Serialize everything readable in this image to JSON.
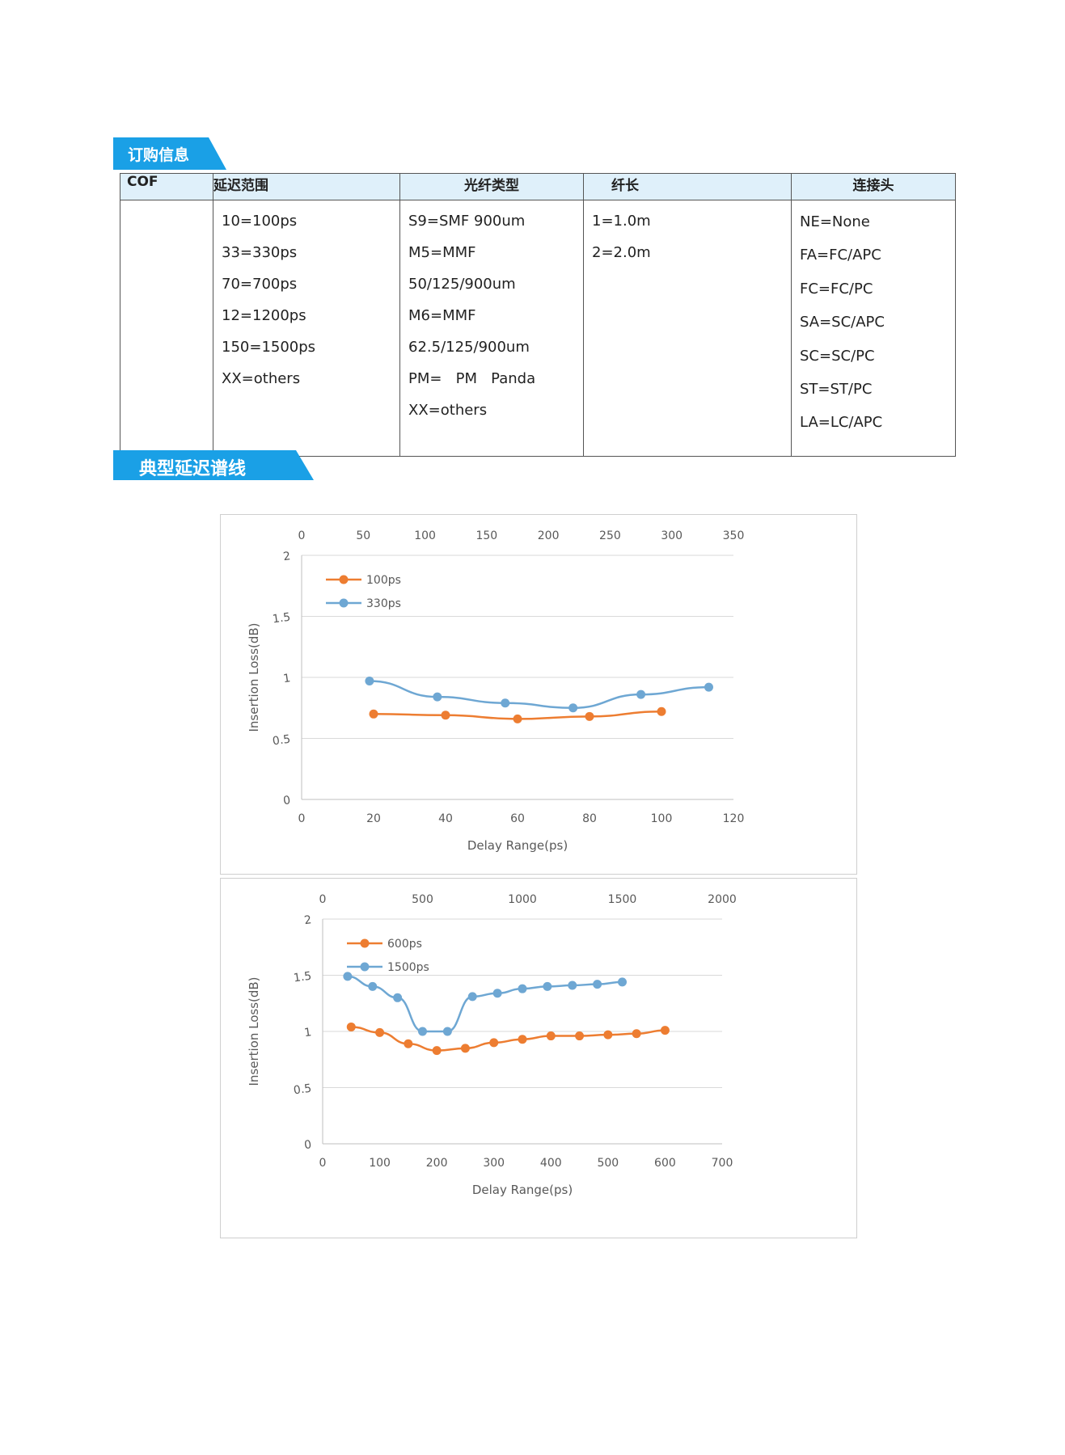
{
  "sections": {
    "order_title": "订购信息",
    "spectrum_title": "典型延迟谱线"
  },
  "colors": {
    "banner": "#1aa0e6",
    "header_bg": "#dff0fa",
    "orange": "#ed7d31",
    "blue": "#6ea7d3"
  },
  "order_table": {
    "headers": [
      "COF",
      "延迟范围",
      "光纤类型",
      "纤长",
      "连接头"
    ],
    "columns": [
      [],
      [
        "10=100ps",
        "33=330ps",
        "70=700ps",
        "12=1200ps",
        "150=1500ps",
        "XX=others"
      ],
      [
        "S9=SMF 900um",
        "M5=MMF",
        "50/125/900um",
        "M6=MMF",
        "62.5/125/900um",
        "PM=   PM   Panda",
        "XX=others"
      ],
      [
        "1=1.0m",
        "2=2.0m"
      ],
      [
        "NE=None",
        "FA=FC/APC",
        "FC=FC/PC",
        "SA=SC/APC",
        "SC=SC/PC",
        "ST=ST/PC",
        "LA=LC/APC"
      ]
    ]
  },
  "chart_data": [
    {
      "type": "line",
      "title": "",
      "xlabel": "Delay Range(ps)",
      "ylabel": "Insertion Loss(dB)",
      "xlim": [
        0,
        120
      ],
      "x_ticks": [
        0,
        20,
        40,
        60,
        80,
        100,
        120
      ],
      "x2lim": [
        0,
        350
      ],
      "x2_ticks": [
        0,
        50,
        100,
        150,
        200,
        250,
        300,
        350
      ],
      "ylim": [
        0,
        2
      ],
      "y_ticks": [
        0,
        0.5,
        1,
        1.5,
        2
      ],
      "grid": true,
      "legend": "top-left",
      "series": [
        {
          "name": "100ps",
          "axis": "bottom",
          "color": "#ed7d31",
          "x": [
            20,
            40,
            60,
            80,
            100
          ],
          "y": [
            0.7,
            0.69,
            0.66,
            0.68,
            0.72
          ]
        },
        {
          "name": "330ps",
          "axis": "top",
          "color": "#6ea7d3",
          "x": [
            55,
            110,
            165,
            220,
            275,
            330
          ],
          "y": [
            0.97,
            0.84,
            0.79,
            0.75,
            0.86,
            0.92
          ]
        }
      ]
    },
    {
      "type": "line",
      "title": "",
      "xlabel": "Delay Range(ps)",
      "ylabel": "Insertion Loss(dB)",
      "xlim": [
        0,
        700
      ],
      "x_ticks": [
        0,
        100,
        200,
        300,
        400,
        500,
        600,
        700
      ],
      "x2lim": [
        0,
        2000
      ],
      "x2_ticks": [
        0,
        500,
        1000,
        1500,
        2000
      ],
      "ylim": [
        0,
        2
      ],
      "y_ticks": [
        0,
        0.5,
        1,
        1.5,
        2
      ],
      "grid": true,
      "legend": "top-left",
      "series": [
        {
          "name": "600ps",
          "axis": "bottom",
          "color": "#ed7d31",
          "x": [
            50,
            100,
            150,
            200,
            250,
            300,
            350,
            400,
            450,
            500,
            550,
            600
          ],
          "y": [
            1.04,
            0.99,
            0.89,
            0.83,
            0.85,
            0.9,
            0.93,
            0.96,
            0.96,
            0.97,
            0.98,
            1.01
          ]
        },
        {
          "name": "1500ps",
          "axis": "top",
          "color": "#6ea7d3",
          "x": [
            125,
            250,
            375,
            500,
            625,
            750,
            875,
            1000,
            1125,
            1250,
            1375,
            1500
          ],
          "y": [
            1.49,
            1.4,
            1.3,
            1.0,
            1.0,
            1.31,
            1.34,
            1.38,
            1.4,
            1.41,
            1.42,
            1.44
          ]
        }
      ]
    }
  ]
}
